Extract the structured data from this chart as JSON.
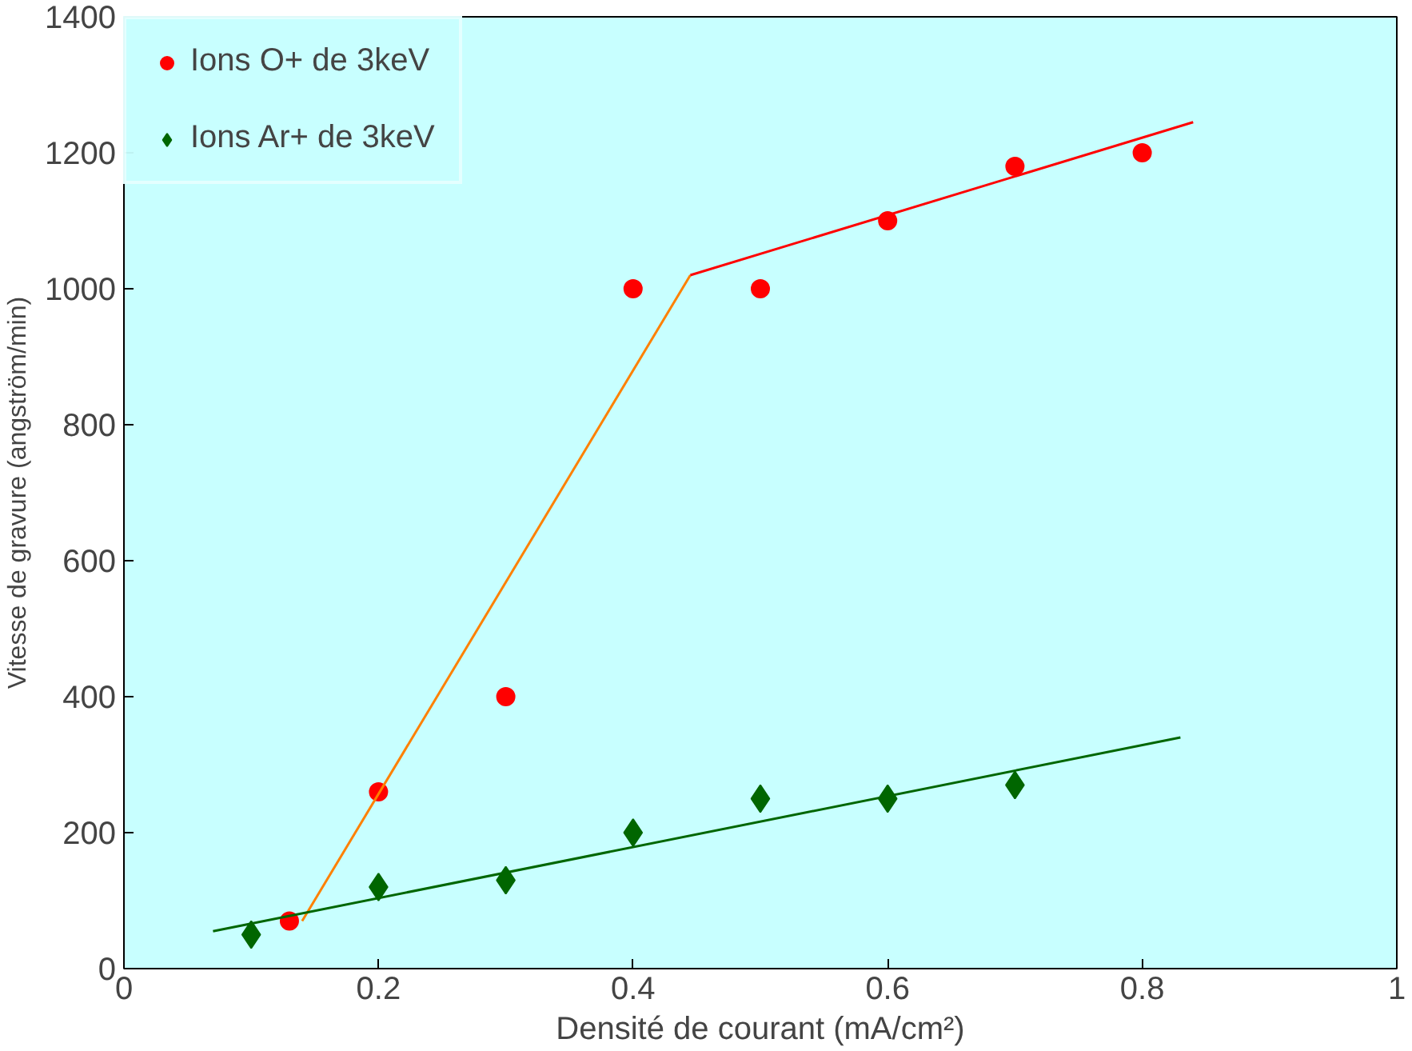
{
  "chart_data": {
    "type": "scatter",
    "xlabel": "Densité de courant (mA/cm²)",
    "ylabel": "Vitesse de gravure (angström/min)",
    "xlim": [
      0,
      1
    ],
    "ylim": [
      0,
      1400
    ],
    "xticks": [
      0,
      0.2,
      0.4,
      0.6,
      0.8,
      1
    ],
    "yticks": [
      0,
      200,
      400,
      600,
      800,
      1000,
      1200,
      1400
    ],
    "grid": false,
    "legend": "top left",
    "series": [
      {
        "name": "Ions O+ de 3keV",
        "color": "#ff0000",
        "marker": "circle",
        "x": [
          0.13,
          0.2,
          0.3,
          0.4,
          0.5,
          0.6,
          0.7,
          0.8
        ],
        "values": [
          70,
          260,
          400,
          1000,
          1000,
          1100,
          1180,
          1200
        ]
      },
      {
        "name": "Ions Ar+ de 3keV",
        "color": "#006600",
        "marker": "diamond",
        "x": [
          0.1,
          0.2,
          0.3,
          0.4,
          0.5,
          0.6,
          0.7
        ],
        "values": [
          50,
          120,
          130,
          200,
          250,
          250,
          270
        ]
      },
      {
        "type": "line",
        "color": "#ff8000",
        "x": [
          0.14,
          0.445
        ],
        "values": [
          70,
          1020
        ]
      },
      {
        "type": "line",
        "color": "#ff0000",
        "x": [
          0.445,
          0.84
        ],
        "values": [
          1020,
          1245
        ]
      },
      {
        "type": "line",
        "color": "#006600",
        "x": [
          0.07,
          0.83
        ],
        "values": [
          55,
          340
        ]
      }
    ]
  }
}
